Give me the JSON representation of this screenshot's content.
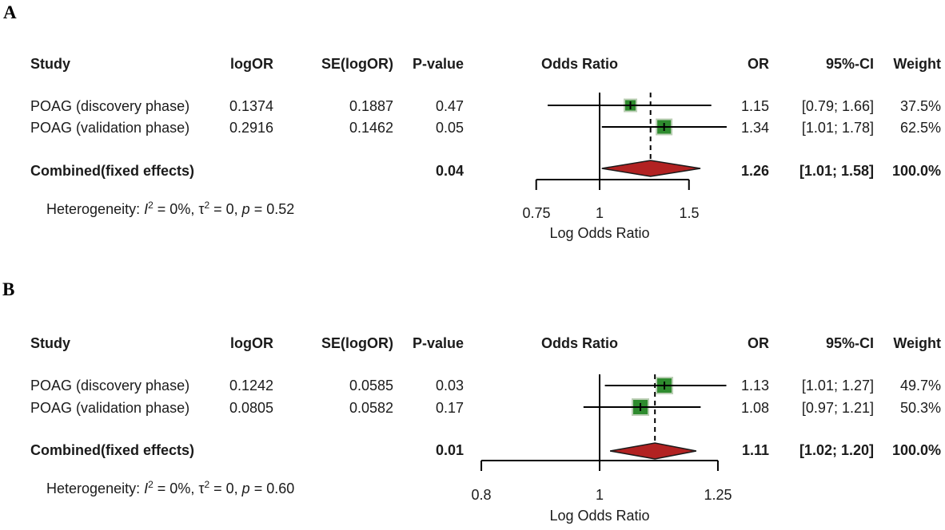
{
  "colors": {
    "marker_fill": "#2e8b2e",
    "marker_border": "#bccfb6",
    "diamond_fill": "#b22222",
    "diamond_border": "#1a1a1a",
    "line": "#000000",
    "text": "#1b1b1b"
  },
  "chart_data": [
    {
      "type": "forest",
      "panel": "A",
      "x_scale": "log",
      "ref_line": 1,
      "axis_ticks": [
        0.75,
        1,
        1.5
      ],
      "axis_tick_labels": [
        "0.75",
        "1",
        "1.5"
      ],
      "xlabel": "Log Odds Ratio",
      "columns": {
        "study": "Study",
        "logOR": "logOR",
        "se": "SE(logOR)",
        "p": "P-value",
        "plot": "Odds Ratio",
        "or": "OR",
        "ci": "95%-CI",
        "weight": "Weight"
      },
      "studies": [
        {
          "name": "POAG (discovery phase)",
          "logOR": "0.1374",
          "se": "0.1887",
          "p": "0.47",
          "or": 1.15,
          "ci_low": 0.79,
          "ci_high": 1.66,
          "weight": 37.5,
          "or_text": "1.15",
          "ci_text": "[0.79; 1.66]",
          "weight_text": "37.5%"
        },
        {
          "name": "POAG (validation phase)",
          "logOR": "0.2916",
          "se": "0.1462",
          "p": "0.05",
          "or": 1.34,
          "ci_low": 1.01,
          "ci_high": 1.78,
          "weight": 62.5,
          "or_text": "1.34",
          "ci_text": "[1.01; 1.78]",
          "weight_text": "62.5%"
        }
      ],
      "combined": {
        "name": "Combined(fixed effects)",
        "p": "0.04",
        "or": 1.26,
        "ci_low": 1.01,
        "ci_high": 1.58,
        "or_text": "1.26",
        "ci_text": "[1.01; 1.58]",
        "weight_text": "100.0%"
      },
      "heterogeneity": {
        "prefix": "Heterogeneity: ",
        "i_sym": "I",
        "i_sup": "2",
        "i_val": " = 0%, ",
        "tau_sym": "τ",
        "tau_sup": "2",
        "tau_val": " = 0, ",
        "p_sym": "p",
        "p_val": " = 0.52"
      }
    },
    {
      "type": "forest",
      "panel": "B",
      "x_scale": "log",
      "ref_line": 1,
      "axis_ticks": [
        0.8,
        1,
        1.25
      ],
      "axis_tick_labels": [
        "0.8",
        "1",
        "1.25"
      ],
      "xlabel": "Log Odds Ratio",
      "columns": {
        "study": "Study",
        "logOR": "logOR",
        "se": "SE(logOR)",
        "p": "P-value",
        "plot": "Odds Ratio",
        "or": "OR",
        "ci": "95%-CI",
        "weight": "Weight"
      },
      "studies": [
        {
          "name": "POAG (discovery phase)",
          "logOR": "0.1242",
          "se": "0.0585",
          "p": "0.03",
          "or": 1.13,
          "ci_low": 1.01,
          "ci_high": 1.27,
          "weight": 49.7,
          "or_text": "1.13",
          "ci_text": "[1.01; 1.27]",
          "weight_text": "49.7%"
        },
        {
          "name": "POAG (validation phase)",
          "logOR": "0.0805",
          "se": "0.0582",
          "p": "0.17",
          "or": 1.08,
          "ci_low": 0.97,
          "ci_high": 1.21,
          "weight": 50.3,
          "or_text": "1.08",
          "ci_text": "[0.97; 1.21]",
          "weight_text": "50.3%"
        }
      ],
      "combined": {
        "name": "Combined(fixed effects)",
        "p": "0.01",
        "or": 1.11,
        "ci_low": 1.02,
        "ci_high": 1.2,
        "or_text": "1.11",
        "ci_text": "[1.02; 1.20]",
        "weight_text": "100.0%"
      },
      "heterogeneity": {
        "prefix": "Heterogeneity: ",
        "i_sym": "I",
        "i_sup": "2",
        "i_val": " = 0%, ",
        "tau_sym": "τ",
        "tau_sup": "2",
        "tau_val": " = 0, ",
        "p_sym": "p",
        "p_val": " = 0.60"
      }
    }
  ]
}
